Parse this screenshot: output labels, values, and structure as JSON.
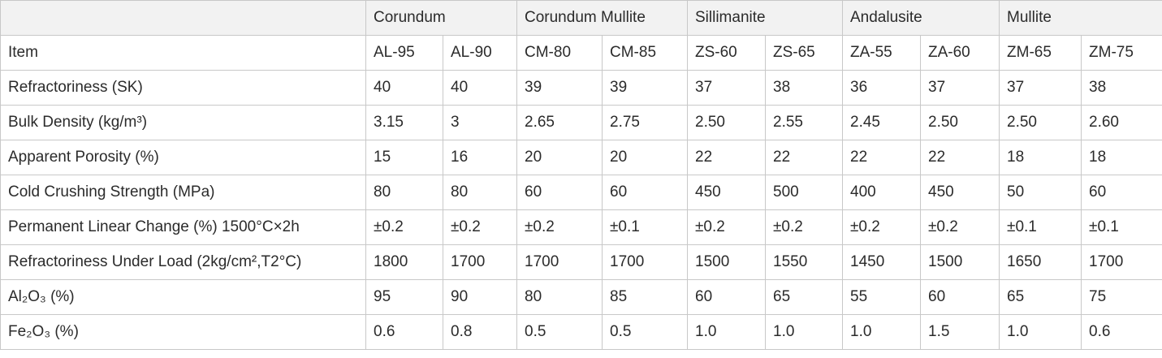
{
  "table": {
    "groups": [
      "Corundum",
      "Corundum Mullite",
      "Sillimanite",
      "Andalusite",
      "Mullite"
    ],
    "rows": [
      [
        "Item",
        "AL-95",
        "AL-90",
        "CM-80",
        "CM-85",
        "ZS-60",
        "ZS-65",
        "ZA-55",
        "ZA-60",
        "ZM-65",
        "ZM-75"
      ],
      [
        "Refractoriness (SK)",
        "40",
        "40",
        "39",
        "39",
        "37",
        "38",
        "36",
        "37",
        "37",
        "38"
      ],
      [
        "Bulk Density (kg/m³)",
        "3.15",
        "3",
        "2.65",
        "2.75",
        "2.50",
        "2.55",
        "2.45",
        "2.50",
        "2.50",
        "2.60"
      ],
      [
        "Apparent Porosity (%)",
        "15",
        "16",
        "20",
        "20",
        "22",
        "22",
        "22",
        "22",
        "18",
        "18"
      ],
      [
        "Cold Crushing Strength (MPa)",
        "80",
        "80",
        "60",
        "60",
        "450",
        "500",
        "400",
        "450",
        "50",
        "60"
      ],
      [
        "Permanent Linear Change (%) 1500°C×2h",
        "±0.2",
        "±0.2",
        "±0.2",
        "±0.1",
        "±0.2",
        "±0.2",
        "±0.2",
        "±0.2",
        "±0.1",
        "±0.1"
      ],
      [
        "Refractoriness Under Load (2kg/cm²,T2°C)",
        "1800",
        "1700",
        "1700",
        "1700",
        "1500",
        "1550",
        "1450",
        "1500",
        "1650",
        "1700"
      ],
      [
        "Al₂O₃ (%)",
        "95",
        "90",
        "80",
        "85",
        "60",
        "65",
        "55",
        "60",
        "65",
        "75"
      ],
      [
        "Fe₂O₃ (%)",
        "0.6",
        "0.8",
        "0.5",
        "0.5",
        "1.0",
        "1.0",
        "1.0",
        "1.5",
        "1.0",
        "0.6"
      ]
    ]
  }
}
